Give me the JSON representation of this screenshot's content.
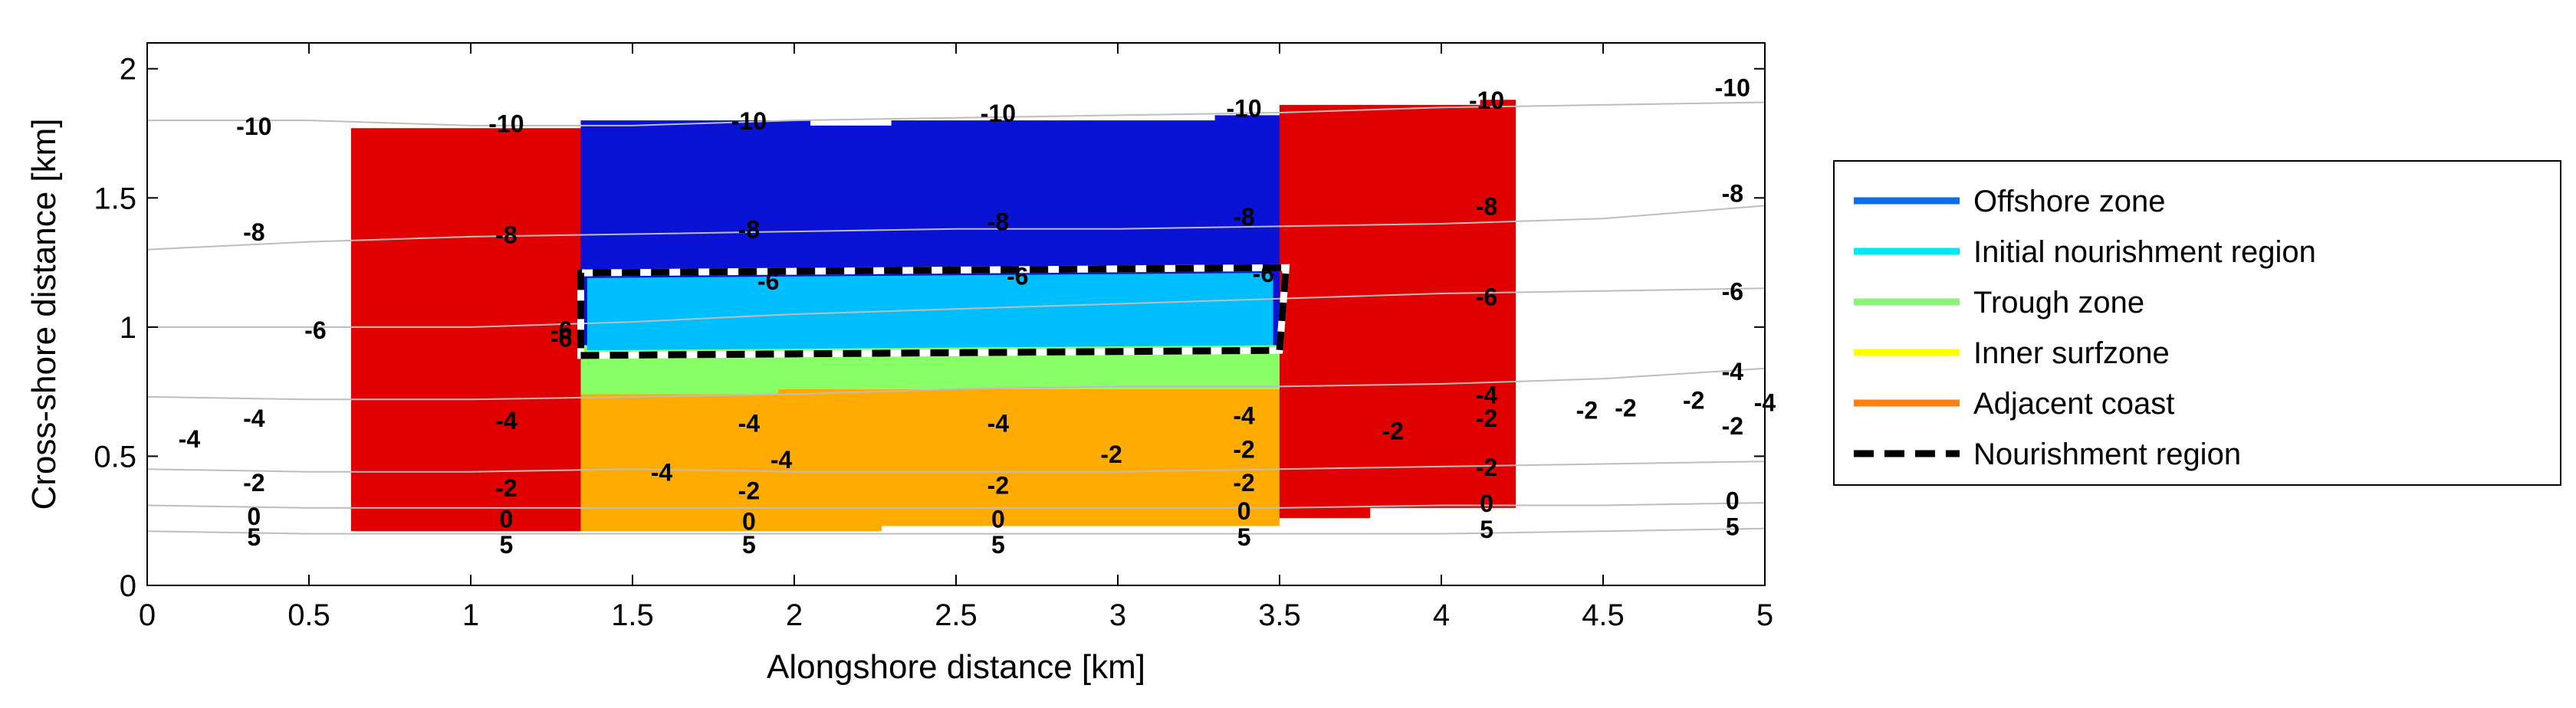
{
  "chart_data": {
    "type": "heatmap",
    "title": "",
    "xlabel": "Alongshore distance [km]",
    "ylabel": "Cross-shore distance [km]",
    "xlim": [
      0,
      5
    ],
    "ylim": [
      0,
      2.1
    ],
    "xticks": [
      0,
      0.5,
      1,
      1.5,
      2,
      2.5,
      3,
      3.5,
      4,
      4.5,
      5
    ],
    "yticks": [
      0,
      0.5,
      1,
      1.5,
      2
    ],
    "xtick_labels": [
      "0",
      "0.5",
      "1",
      "1.5",
      "2",
      "2.5",
      "3",
      "3.5",
      "4",
      "4.5",
      "5"
    ],
    "ytick_labels": [
      "0",
      "0.5",
      "1",
      "1.5",
      "2"
    ],
    "grid": false,
    "legend_position": "right",
    "zones": [
      {
        "name": "Adjacent coast",
        "color": "#e00000",
        "polygon": [
          [
            0.63,
            0.21
          ],
          [
            1.34,
            0.21
          ],
          [
            1.34,
            1.77
          ],
          [
            0.63,
            1.77
          ]
        ]
      },
      {
        "name": "Adjacent coast",
        "color": "#e00000",
        "polygon": [
          [
            3.5,
            0.26
          ],
          [
            3.78,
            0.26
          ],
          [
            3.78,
            0.3
          ],
          [
            4.23,
            0.3
          ],
          [
            4.23,
            1.88
          ],
          [
            4.12,
            1.88
          ],
          [
            4.12,
            1.86
          ],
          [
            3.5,
            1.86
          ]
        ]
      },
      {
        "name": "Inner surfzone",
        "color": "#ffab00",
        "polygon": [
          [
            1.34,
            0.21
          ],
          [
            2.27,
            0.21
          ],
          [
            2.27,
            0.23
          ],
          [
            3.5,
            0.23
          ],
          [
            3.5,
            0.76
          ],
          [
            1.95,
            0.76
          ],
          [
            1.95,
            0.74
          ],
          [
            1.34,
            0.74
          ]
        ]
      },
      {
        "name": "Trough zone",
        "color": "#88ff66",
        "polygon": [
          [
            1.34,
            0.74
          ],
          [
            1.95,
            0.74
          ],
          [
            1.95,
            0.76
          ],
          [
            3.5,
            0.76
          ],
          [
            3.5,
            0.93
          ],
          [
            1.34,
            0.93
          ]
        ]
      },
      {
        "name": "Offshore zone",
        "color": "#0a12d6",
        "polygon": [
          [
            1.34,
            0.93
          ],
          [
            3.5,
            0.93
          ],
          [
            3.5,
            1.82
          ],
          [
            3.3,
            1.82
          ],
          [
            3.3,
            1.8
          ],
          [
            2.3,
            1.8
          ],
          [
            2.3,
            1.78
          ],
          [
            2.05,
            1.78
          ],
          [
            2.05,
            1.8
          ],
          [
            1.34,
            1.8
          ]
        ]
      },
      {
        "name": "Initial nourishment region",
        "color": "#00bfff",
        "polygon": [
          [
            1.36,
            0.91
          ],
          [
            3.48,
            0.93
          ],
          [
            3.48,
            1.21
          ],
          [
            1.36,
            1.19
          ]
        ]
      }
    ],
    "nourishment_outline": [
      [
        1.34,
        0.89
      ],
      [
        3.5,
        0.91
      ],
      [
        3.52,
        1.23
      ],
      [
        1.34,
        1.21
      ]
    ],
    "contours": [
      {
        "level": "-10",
        "y": [
          1.8,
          1.8,
          1.78,
          1.78,
          1.8,
          1.81,
          1.82,
          1.83,
          1.85,
          1.86,
          1.87
        ]
      },
      {
        "level": "-8",
        "y": [
          1.3,
          1.33,
          1.35,
          1.36,
          1.37,
          1.38,
          1.38,
          1.39,
          1.4,
          1.42,
          1.47
        ]
      },
      {
        "level": "-6",
        "y": [
          1.0,
          1.0,
          1.0,
          1.02,
          1.05,
          1.07,
          1.09,
          1.11,
          1.13,
          1.14,
          1.15
        ]
      },
      {
        "level": "-4",
        "y": [
          0.73,
          0.72,
          0.72,
          0.73,
          0.74,
          0.76,
          0.77,
          0.77,
          0.78,
          0.8,
          0.84
        ]
      },
      {
        "level": "-2",
        "y": [
          0.45,
          0.44,
          0.44,
          0.45,
          0.44,
          0.44,
          0.44,
          0.45,
          0.46,
          0.47,
          0.48
        ]
      },
      {
        "level": "0",
        "y": [
          0.31,
          0.3,
          0.3,
          0.3,
          0.3,
          0.3,
          0.3,
          0.3,
          0.31,
          0.31,
          0.32
        ]
      },
      {
        "level": "5",
        "y": [
          0.21,
          0.2,
          0.2,
          0.2,
          0.2,
          0.2,
          0.2,
          0.2,
          0.2,
          0.21,
          0.22
        ]
      }
    ],
    "contour_x": [
      0,
      0.5,
      1,
      1.5,
      2,
      2.5,
      3,
      3.5,
      4,
      4.5,
      5
    ],
    "contour_labels": [
      {
        "text": "-10",
        "x": 0.33,
        "y": 1.78
      },
      {
        "text": "-10",
        "x": 1.11,
        "y": 1.79
      },
      {
        "text": "-10",
        "x": 1.86,
        "y": 1.8
      },
      {
        "text": "-10",
        "x": 2.63,
        "y": 1.83
      },
      {
        "text": "-10",
        "x": 3.39,
        "y": 1.85
      },
      {
        "text": "-10",
        "x": 4.14,
        "y": 1.88
      },
      {
        "text": "-10",
        "x": 4.9,
        "y": 1.93
      },
      {
        "text": "-8",
        "x": 0.33,
        "y": 1.37
      },
      {
        "text": "-8",
        "x": 1.11,
        "y": 1.36
      },
      {
        "text": "-8",
        "x": 1.86,
        "y": 1.38
      },
      {
        "text": "-8",
        "x": 2.63,
        "y": 1.41
      },
      {
        "text": "-8",
        "x": 3.39,
        "y": 1.43
      },
      {
        "text": "-8",
        "x": 4.14,
        "y": 1.47
      },
      {
        "text": "-8",
        "x": 4.9,
        "y": 1.52
      },
      {
        "text": "-6",
        "x": 0.52,
        "y": 0.99
      },
      {
        "text": "-6",
        "x": 1.28,
        "y": 0.96
      },
      {
        "text": "-6",
        "x": 1.28,
        "y": 0.99
      },
      {
        "text": "-6",
        "x": 1.92,
        "y": 1.18
      },
      {
        "text": "-6",
        "x": 2.69,
        "y": 1.2
      },
      {
        "text": "-6",
        "x": 3.45,
        "y": 1.21
      },
      {
        "text": "-6",
        "x": 4.14,
        "y": 1.12
      },
      {
        "text": "-6",
        "x": 4.9,
        "y": 1.14
      },
      {
        "text": "-4",
        "x": 0.13,
        "y": 0.57
      },
      {
        "text": "-4",
        "x": 0.33,
        "y": 0.65
      },
      {
        "text": "-4",
        "x": 1.11,
        "y": 0.64
      },
      {
        "text": "-4",
        "x": 1.86,
        "y": 0.63
      },
      {
        "text": "-4",
        "x": 2.63,
        "y": 0.63
      },
      {
        "text": "-4",
        "x": 3.39,
        "y": 0.66
      },
      {
        "text": "-4",
        "x": 1.59,
        "y": 0.44
      },
      {
        "text": "-4",
        "x": 1.96,
        "y": 0.49
      },
      {
        "text": "-4",
        "x": 4.14,
        "y": 0.74
      },
      {
        "text": "-4",
        "x": 4.9,
        "y": 0.83
      },
      {
        "text": "-4",
        "x": 5.0,
        "y": 0.71
      },
      {
        "text": "-2",
        "x": 0.33,
        "y": 0.4
      },
      {
        "text": "-2",
        "x": 1.11,
        "y": 0.38
      },
      {
        "text": "-2",
        "x": 1.86,
        "y": 0.37
      },
      {
        "text": "-2",
        "x": 2.63,
        "y": 0.39
      },
      {
        "text": "-2",
        "x": 2.98,
        "y": 0.51
      },
      {
        "text": "-2",
        "x": 3.39,
        "y": 0.53
      },
      {
        "text": "-2",
        "x": 3.39,
        "y": 0.4
      },
      {
        "text": "-2",
        "x": 3.85,
        "y": 0.6
      },
      {
        "text": "-2",
        "x": 4.14,
        "y": 0.65
      },
      {
        "text": "-2",
        "x": 4.14,
        "y": 0.46
      },
      {
        "text": "-2",
        "x": 4.45,
        "y": 0.68
      },
      {
        "text": "-2",
        "x": 4.57,
        "y": 0.69
      },
      {
        "text": "-2",
        "x": 4.78,
        "y": 0.72
      },
      {
        "text": "-2",
        "x": 4.9,
        "y": 0.62
      },
      {
        "text": "0",
        "x": 0.33,
        "y": 0.27
      },
      {
        "text": "0",
        "x": 1.11,
        "y": 0.26
      },
      {
        "text": "0",
        "x": 1.86,
        "y": 0.25
      },
      {
        "text": "0",
        "x": 2.63,
        "y": 0.26
      },
      {
        "text": "0",
        "x": 3.39,
        "y": 0.29
      },
      {
        "text": "0",
        "x": 4.14,
        "y": 0.32
      },
      {
        "text": "0",
        "x": 4.9,
        "y": 0.33
      },
      {
        "text": "5",
        "x": 0.33,
        "y": 0.19
      },
      {
        "text": "5",
        "x": 1.11,
        "y": 0.16
      },
      {
        "text": "5",
        "x": 1.86,
        "y": 0.16
      },
      {
        "text": "5",
        "x": 2.63,
        "y": 0.16
      },
      {
        "text": "5",
        "x": 3.39,
        "y": 0.19
      },
      {
        "text": "5",
        "x": 4.14,
        "y": 0.22
      },
      {
        "text": "5",
        "x": 4.9,
        "y": 0.23
      }
    ],
    "legend": [
      {
        "label": "Offshore zone",
        "color": "#0b6fe6",
        "style": "solid"
      },
      {
        "label": "Initial nourishment region",
        "color": "#00e7f5",
        "style": "solid"
      },
      {
        "label": "Trough zone",
        "color": "#8cf27a",
        "style": "solid"
      },
      {
        "label": "Inner surfzone",
        "color": "#ffff00",
        "style": "solid"
      },
      {
        "label": "Adjacent coast",
        "color": "#ff7f10",
        "style": "solid"
      },
      {
        "label": "Nourishment region",
        "color": "#000000",
        "style": "dashed"
      }
    ]
  }
}
